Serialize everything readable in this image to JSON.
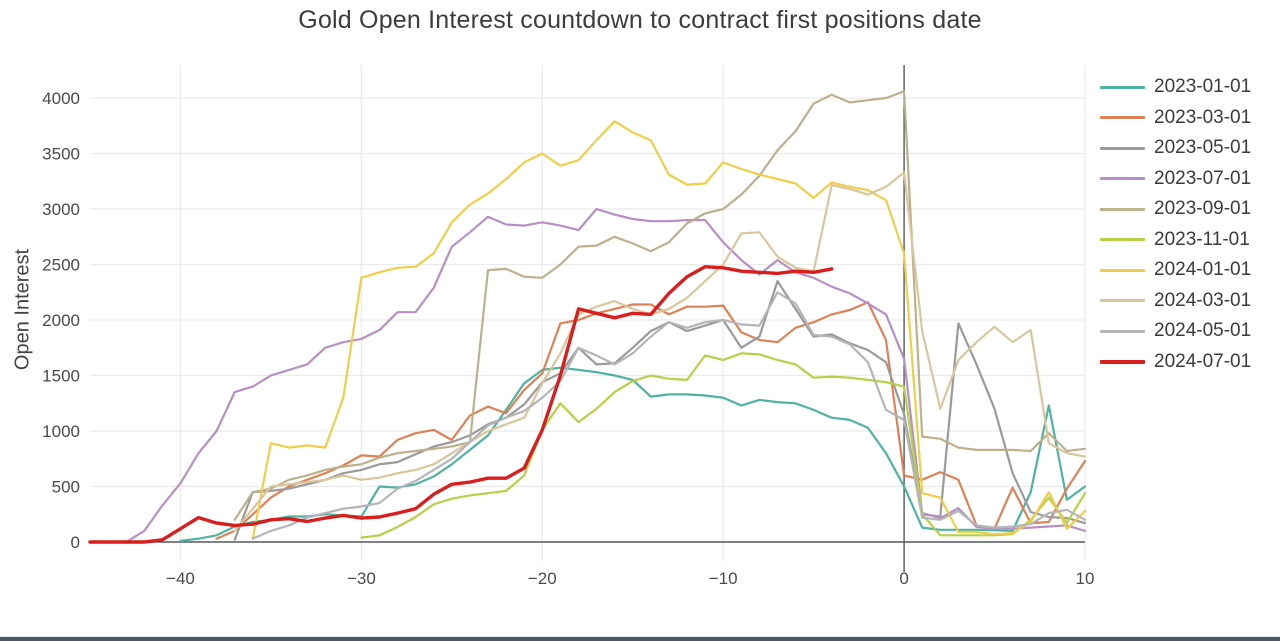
{
  "page": {
    "background": "#ffffff",
    "bottom_bar_color": "#4d5761"
  },
  "chart_data": {
    "type": "line",
    "title": "Gold Open Interest countdown to contract first positions date",
    "xlabel": "",
    "ylabel": "Open Interest",
    "x_range": [
      -45,
      10
    ],
    "y_range": [
      -170,
      4300
    ],
    "x_ticks": [
      -40,
      -30,
      -20,
      -10,
      0,
      10
    ],
    "x_tick_labels": [
      "−40",
      "−30",
      "−20",
      "−10",
      "0",
      "10"
    ],
    "y_ticks": [
      0,
      500,
      1000,
      1500,
      2000,
      2500,
      3000,
      3500,
      4000
    ],
    "y_tick_labels": [
      "0",
      "500",
      "1000",
      "1500",
      "2000",
      "2500",
      "3000",
      "3500",
      "4000"
    ],
    "grid": true,
    "gridline_color": "#ebebeb",
    "zeroline_color": "#55585c",
    "zero_vline_x": 0,
    "legend_position": "right",
    "x": [
      -45,
      -44,
      -43,
      -42,
      -41,
      -40,
      -39,
      -38,
      -37,
      -36,
      -35,
      -34,
      -33,
      -32,
      -31,
      -30,
      -29,
      -28,
      -27,
      -26,
      -25,
      -24,
      -23,
      -22,
      -21,
      -20,
      -19,
      -18,
      -17,
      -16,
      -15,
      -14,
      -13,
      -12,
      -11,
      -10,
      -9,
      -8,
      -7,
      -6,
      -5,
      -4,
      -3,
      -2,
      -1,
      0,
      1,
      2,
      3,
      4,
      5,
      6,
      7,
      8,
      9,
      10
    ],
    "series": [
      {
        "name": "2023-01-01",
        "color": "#4eb3a0",
        "width": 2.2,
        "values": [
          null,
          null,
          null,
          null,
          null,
          10,
          30,
          60,
          140,
          180,
          200,
          230,
          230,
          250,
          240,
          230,
          500,
          490,
          520,
          590,
          700,
          830,
          960,
          1190,
          1430,
          1550,
          1570,
          1550,
          1530,
          1500,
          1460,
          1310,
          1330,
          1330,
          1320,
          1300,
          1230,
          1280,
          1260,
          1250,
          1190,
          1120,
          1100,
          1030,
          800,
          500,
          130,
          110,
          110,
          110,
          105,
          100,
          450,
          1230,
          380,
          500
        ]
      },
      {
        "name": "2023-03-01",
        "color": "#e08155",
        "width": 2.2,
        "values": [
          null,
          null,
          null,
          null,
          null,
          null,
          null,
          30,
          100,
          250,
          400,
          500,
          560,
          620,
          690,
          780,
          770,
          920,
          980,
          1010,
          920,
          1140,
          1220,
          1160,
          1370,
          1520,
          1970,
          2000,
          2060,
          2100,
          2140,
          2140,
          2050,
          2120,
          2120,
          2130,
          1890,
          1820,
          1800,
          1930,
          1980,
          2050,
          2090,
          2160,
          1820,
          600,
          560,
          630,
          560,
          150,
          120,
          490,
          170,
          180,
          480,
          730
        ]
      },
      {
        "name": "2023-05-01",
        "color": "#9a9a9a",
        "width": 2.2,
        "values": [
          null,
          null,
          null,
          null,
          null,
          null,
          null,
          null,
          20,
          450,
          460,
          480,
          520,
          560,
          620,
          650,
          700,
          720,
          790,
          860,
          900,
          960,
          1060,
          1120,
          1240,
          1440,
          1520,
          1750,
          1600,
          1610,
          1750,
          1900,
          1980,
          1900,
          1950,
          2000,
          1750,
          1850,
          2350,
          2100,
          1850,
          1870,
          1790,
          1730,
          1620,
          1150,
          250,
          230,
          1970,
          1600,
          1200,
          620,
          270,
          225,
          215,
          170
        ]
      },
      {
        "name": "2023-07-01",
        "color": "#b78fc4",
        "width": 2.2,
        "values": [
          null,
          null,
          0,
          100,
          330,
          530,
          800,
          1000,
          1350,
          1400,
          1500,
          1550,
          1600,
          1750,
          1800,
          1830,
          1910,
          2070,
          2070,
          2290,
          2660,
          2790,
          2930,
          2860,
          2850,
          2880,
          2850,
          2810,
          3000,
          2950,
          2910,
          2890,
          2890,
          2900,
          2900,
          2700,
          2540,
          2410,
          2540,
          2430,
          2380,
          2300,
          2240,
          2150,
          2050,
          1650,
          260,
          215,
          305,
          135,
          120,
          120,
          130,
          140,
          150,
          100
        ]
      },
      {
        "name": "2023-09-01",
        "color": "#bdb08c",
        "width": 2.2,
        "values": [
          null,
          null,
          null,
          null,
          null,
          null,
          null,
          null,
          200,
          450,
          480,
          560,
          600,
          650,
          680,
          700,
          760,
          800,
          820,
          840,
          860,
          900,
          2450,
          2460,
          2390,
          2380,
          2500,
          2660,
          2670,
          2750,
          2690,
          2620,
          2700,
          2870,
          2960,
          3000,
          3130,
          3300,
          3530,
          3700,
          3950,
          4030,
          3960,
          3980,
          4000,
          4060,
          950,
          930,
          850,
          830,
          830,
          830,
          820,
          980,
          820,
          840
        ]
      },
      {
        "name": "2023-11-01",
        "color": "#b9cf45",
        "width": 2.2,
        "values": [
          null,
          null,
          null,
          null,
          null,
          null,
          null,
          null,
          null,
          null,
          null,
          null,
          null,
          null,
          null,
          40,
          60,
          135,
          225,
          340,
          390,
          420,
          440,
          460,
          600,
          1010,
          1250,
          1080,
          1200,
          1350,
          1450,
          1500,
          1470,
          1460,
          1680,
          1640,
          1700,
          1690,
          1640,
          1600,
          1480,
          1490,
          1480,
          1460,
          1440,
          1400,
          250,
          60,
          60,
          60,
          60,
          70,
          200,
          400,
          170,
          440
        ]
      },
      {
        "name": "2024-01-01",
        "color": "#f0ce49",
        "width": 2.2,
        "values": [
          null,
          null,
          null,
          null,
          null,
          null,
          null,
          null,
          null,
          30,
          890,
          850,
          870,
          850,
          1300,
          2380,
          2430,
          2470,
          2480,
          2600,
          2880,
          3040,
          3140,
          3270,
          3420,
          3500,
          3390,
          3440,
          3620,
          3790,
          3690,
          3620,
          3310,
          3220,
          3230,
          3420,
          3360,
          3310,
          3270,
          3230,
          3100,
          3240,
          3200,
          3170,
          3080,
          2600,
          440,
          400,
          90,
          90,
          70,
          80,
          180,
          450,
          120,
          280
        ]
      },
      {
        "name": "2024-03-01",
        "color": "#d9c69c",
        "width": 2.2,
        "values": [
          null,
          null,
          null,
          null,
          null,
          null,
          null,
          null,
          100,
          300,
          500,
          520,
          540,
          560,
          600,
          560,
          580,
          620,
          650,
          700,
          800,
          900,
          1000,
          1060,
          1120,
          1430,
          1700,
          2050,
          2120,
          2170,
          2100,
          2050,
          2100,
          2200,
          2350,
          2500,
          2780,
          2790,
          2570,
          2470,
          2440,
          3215,
          3180,
          3130,
          3200,
          3330,
          1900,
          1200,
          1640,
          1800,
          1940,
          1800,
          1910,
          890,
          800,
          770
        ]
      },
      {
        "name": "2024-05-01",
        "color": "#b4b4ba",
        "width": 2.2,
        "values": [
          null,
          null,
          null,
          null,
          null,
          null,
          null,
          null,
          null,
          30,
          100,
          150,
          220,
          260,
          300,
          320,
          350,
          480,
          550,
          650,
          750,
          900,
          1050,
          1120,
          1180,
          1300,
          1450,
          1750,
          1680,
          1600,
          1700,
          1850,
          1980,
          1930,
          1980,
          2000,
          1960,
          1950,
          2250,
          2150,
          1865,
          1850,
          1780,
          1620,
          1190,
          1100,
          220,
          200,
          280,
          150,
          130,
          140,
          160,
          260,
          290,
          200
        ]
      },
      {
        "name": "2024-07-01",
        "color": "#d91e1e",
        "width": 3.4,
        "values": [
          0,
          0,
          0,
          0,
          20,
          120,
          220,
          170,
          150,
          160,
          200,
          210,
          185,
          215,
          240,
          215,
          225,
          260,
          300,
          430,
          520,
          540,
          575,
          575,
          666,
          1010,
          1500,
          2100,
          2060,
          2020,
          2060,
          2050,
          2240,
          2390,
          2480,
          2470,
          2440,
          2430,
          2420,
          2440,
          2430,
          2460,
          null,
          null,
          null,
          null,
          null,
          null,
          null,
          null,
          null,
          null,
          null,
          null,
          null,
          null
        ]
      }
    ]
  }
}
